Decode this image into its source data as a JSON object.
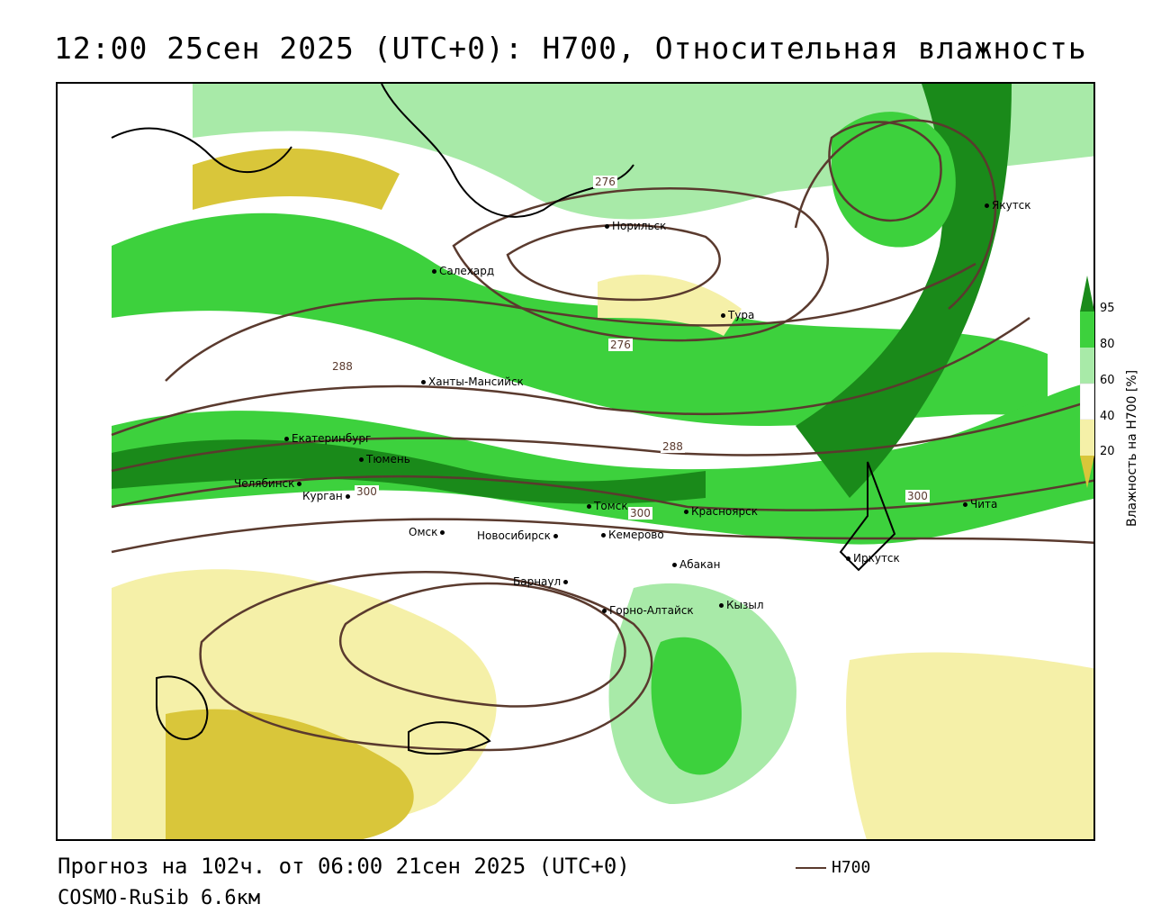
{
  "title": "12:00 25сен 2025 (UTC+0): H700, Относительная влажность",
  "footer": {
    "forecast": "Прогноз на 102ч. от 06:00 21сен 2025 (UTC+0)",
    "model": "COSMO-RuSib 6.6км",
    "legend_label": "H700"
  },
  "colorbar": {
    "title": "Влажность на H700 [%]",
    "ticks": [
      "95",
      "80",
      "60",
      "40",
      "20"
    ],
    "colors": [
      "#1a8a1a",
      "#3dd13d",
      "#a8eaa8",
      "#ffffff",
      "#f5f0a8",
      "#d9c63a"
    ]
  },
  "isolines": [
    "276",
    "276",
    "288",
    "288",
    "300",
    "300",
    "300"
  ],
  "cities": [
    {
      "name": "Якутск"
    },
    {
      "name": "Норильск"
    },
    {
      "name": "Салехард"
    },
    {
      "name": "Тура"
    },
    {
      "name": "Ханты-Мансийск"
    },
    {
      "name": "Екатеринбург"
    },
    {
      "name": "Тюмень"
    },
    {
      "name": "Челябинск"
    },
    {
      "name": "Курган"
    },
    {
      "name": "Омск"
    },
    {
      "name": "Новосибирск"
    },
    {
      "name": "Томск"
    },
    {
      "name": "Красноярск"
    },
    {
      "name": "Кемерово"
    },
    {
      "name": "Барнаул"
    },
    {
      "name": "Абакан"
    },
    {
      "name": "Горно-Алтайск"
    },
    {
      "name": "Кызыл"
    },
    {
      "name": "Иркутск"
    },
    {
      "name": "Чита"
    }
  ]
}
